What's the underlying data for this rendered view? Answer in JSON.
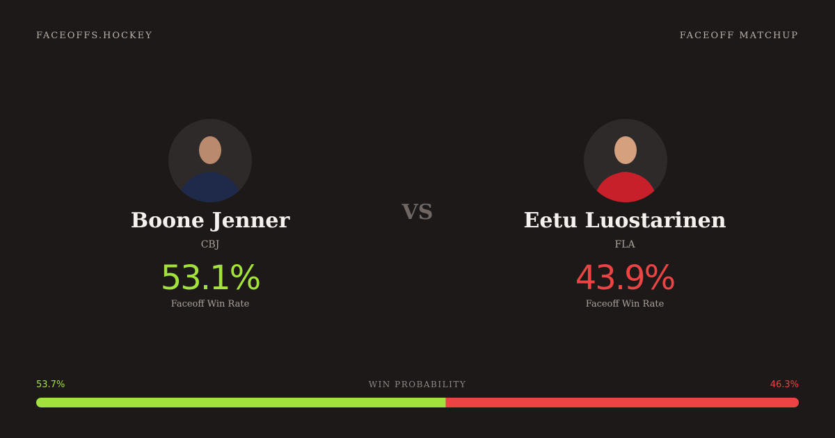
{
  "header": {
    "site": "FACEOFFS.HOCKEY",
    "label": "FACEOFF MATCHUP"
  },
  "vs": "VS",
  "players": [
    {
      "name": "Boone Jenner",
      "team": "CBJ",
      "rate": "53.1%",
      "rate_label": "Faceoff Win Rate",
      "color": "#a3e23c"
    },
    {
      "name": "Eetu Luostarinen",
      "team": "FLA",
      "rate": "43.9%",
      "rate_label": "Faceoff Win Rate",
      "color": "#ec4444"
    }
  ],
  "win_probability": {
    "label": "WIN PROBABILITY",
    "left": {
      "value": 53.7,
      "label": "53.7%"
    },
    "right": {
      "value": 46.3,
      "label": "46.3%"
    }
  }
}
